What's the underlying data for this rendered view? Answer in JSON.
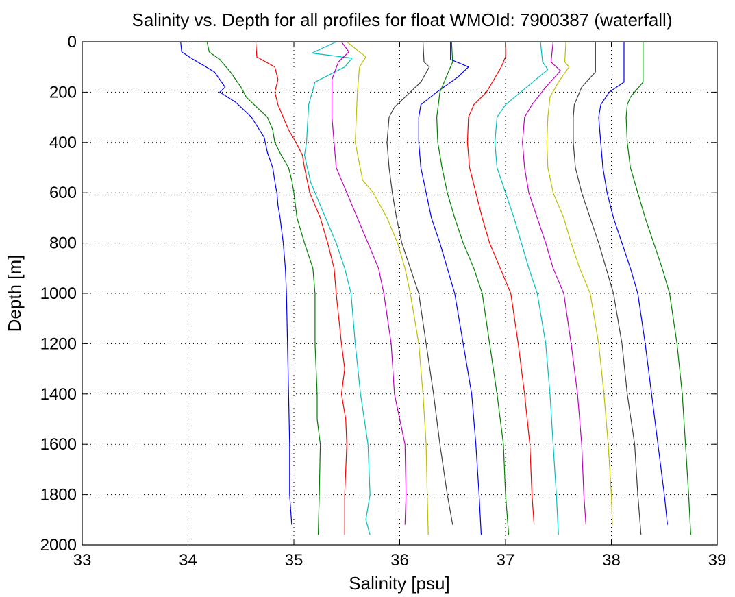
{
  "chart_data": {
    "type": "line",
    "title": "Salinity vs. Depth for all profiles for float WMOId: 7900387 (waterfall)",
    "xlabel": "Salinity [psu]",
    "ylabel": "Depth [m]",
    "xlim": [
      33,
      39
    ],
    "ylim": [
      0,
      2000
    ],
    "y_reversed": true,
    "grid": true,
    "xticks": [
      33,
      34,
      35,
      36,
      37,
      38,
      39
    ],
    "yticks": [
      0,
      200,
      400,
      600,
      800,
      1000,
      1200,
      1400,
      1600,
      1800,
      2000
    ],
    "series": [
      {
        "color": "#0000ff",
        "points": [
          [
            33.93,
            0
          ],
          [
            33.94,
            40
          ],
          [
            34.05,
            70
          ],
          [
            34.25,
            120
          ],
          [
            34.35,
            180
          ],
          [
            34.3,
            200
          ],
          [
            34.45,
            240
          ],
          [
            34.6,
            300
          ],
          [
            34.72,
            380
          ],
          [
            34.75,
            440
          ],
          [
            34.8,
            500
          ],
          [
            34.83,
            580
          ],
          [
            34.84,
            600
          ],
          [
            34.85,
            650
          ],
          [
            34.87,
            700
          ],
          [
            34.9,
            800
          ],
          [
            34.92,
            900
          ],
          [
            34.93,
            1000
          ],
          [
            34.94,
            1200
          ],
          [
            34.95,
            1400
          ],
          [
            34.96,
            1600
          ],
          [
            34.96,
            1800
          ],
          [
            34.98,
            1920
          ]
        ]
      },
      {
        "color": "#008000",
        "points": [
          [
            34.18,
            0
          ],
          [
            34.2,
            40
          ],
          [
            34.3,
            70
          ],
          [
            34.4,
            120
          ],
          [
            34.5,
            180
          ],
          [
            34.55,
            220
          ],
          [
            34.65,
            260
          ],
          [
            34.75,
            300
          ],
          [
            34.8,
            350
          ],
          [
            34.82,
            400
          ],
          [
            34.88,
            450
          ],
          [
            34.95,
            500
          ],
          [
            34.98,
            550
          ],
          [
            35.0,
            600
          ],
          [
            35.03,
            700
          ],
          [
            35.1,
            800
          ],
          [
            35.18,
            900
          ],
          [
            35.2,
            1000
          ],
          [
            35.2,
            1200
          ],
          [
            35.22,
            1400
          ],
          [
            35.22,
            1500
          ],
          [
            35.25,
            1600
          ],
          [
            35.24,
            1800
          ],
          [
            35.23,
            1960
          ]
        ]
      },
      {
        "color": "#ff0000",
        "points": [
          [
            34.64,
            0
          ],
          [
            34.65,
            60
          ],
          [
            34.82,
            100
          ],
          [
            34.85,
            150
          ],
          [
            34.82,
            200
          ],
          [
            34.85,
            250
          ],
          [
            34.9,
            300
          ],
          [
            34.95,
            350
          ],
          [
            35.02,
            400
          ],
          [
            35.08,
            450
          ],
          [
            35.1,
            500
          ],
          [
            35.15,
            600
          ],
          [
            35.25,
            700
          ],
          [
            35.32,
            800
          ],
          [
            35.38,
            900
          ],
          [
            35.4,
            1000
          ],
          [
            35.45,
            1200
          ],
          [
            35.48,
            1300
          ],
          [
            35.45,
            1400
          ],
          [
            35.49,
            1500
          ],
          [
            35.5,
            1600
          ],
          [
            35.48,
            1800
          ],
          [
            35.48,
            1960
          ]
        ]
      },
      {
        "color": "#00bfbf",
        "points": [
          [
            35.4,
            0
          ],
          [
            35.17,
            45
          ],
          [
            35.55,
            65
          ],
          [
            35.48,
            100
          ],
          [
            35.2,
            160
          ],
          [
            35.14,
            250
          ],
          [
            35.12,
            400
          ],
          [
            35.1,
            450
          ],
          [
            35.16,
            560
          ],
          [
            35.2,
            600
          ],
          [
            35.3,
            700
          ],
          [
            35.4,
            800
          ],
          [
            35.48,
            900
          ],
          [
            35.54,
            1000
          ],
          [
            35.58,
            1200
          ],
          [
            35.63,
            1400
          ],
          [
            35.7,
            1600
          ],
          [
            35.72,
            1800
          ],
          [
            35.68,
            1900
          ],
          [
            35.72,
            1960
          ]
        ]
      },
      {
        "color": "#bf00bf",
        "points": [
          [
            35.45,
            0
          ],
          [
            35.52,
            40
          ],
          [
            35.42,
            80
          ],
          [
            35.36,
            150
          ],
          [
            35.36,
            300
          ],
          [
            35.38,
            400
          ],
          [
            35.4,
            500
          ],
          [
            35.5,
            600
          ],
          [
            35.6,
            700
          ],
          [
            35.7,
            800
          ],
          [
            35.8,
            900
          ],
          [
            35.85,
            1000
          ],
          [
            35.92,
            1200
          ],
          [
            35.95,
            1400
          ],
          [
            36.0,
            1500
          ],
          [
            36.05,
            1600
          ],
          [
            36.06,
            1800
          ],
          [
            36.05,
            1920
          ]
        ]
      },
      {
        "color": "#bfbf00",
        "points": [
          [
            35.5,
            0
          ],
          [
            35.68,
            60
          ],
          [
            35.62,
            100
          ],
          [
            35.6,
            200
          ],
          [
            35.58,
            400
          ],
          [
            35.65,
            550
          ],
          [
            35.75,
            600
          ],
          [
            35.88,
            700
          ],
          [
            35.98,
            800
          ],
          [
            36.05,
            900
          ],
          [
            36.1,
            1000
          ],
          [
            36.18,
            1200
          ],
          [
            36.22,
            1400
          ],
          [
            36.25,
            1600
          ],
          [
            36.26,
            1800
          ],
          [
            36.27,
            1960
          ]
        ]
      },
      {
        "color": "#404040",
        "points": [
          [
            36.22,
            0
          ],
          [
            36.23,
            80
          ],
          [
            36.28,
            100
          ],
          [
            36.2,
            160
          ],
          [
            36.05,
            220
          ],
          [
            35.95,
            260
          ],
          [
            35.9,
            300
          ],
          [
            35.88,
            400
          ],
          [
            35.9,
            500
          ],
          [
            35.93,
            600
          ],
          [
            35.97,
            700
          ],
          [
            36.02,
            800
          ],
          [
            36.1,
            900
          ],
          [
            36.18,
            1000
          ],
          [
            36.25,
            1200
          ],
          [
            36.32,
            1400
          ],
          [
            36.38,
            1600
          ],
          [
            36.45,
            1800
          ],
          [
            36.5,
            1920
          ]
        ]
      },
      {
        "color": "#0000ff",
        "points": [
          [
            36.48,
            0
          ],
          [
            36.48,
            70
          ],
          [
            36.65,
            100
          ],
          [
            36.55,
            140
          ],
          [
            36.35,
            200
          ],
          [
            36.2,
            250
          ],
          [
            36.18,
            300
          ],
          [
            36.18,
            400
          ],
          [
            36.2,
            500
          ],
          [
            36.25,
            600
          ],
          [
            36.3,
            700
          ],
          [
            36.38,
            800
          ],
          [
            36.45,
            900
          ],
          [
            36.52,
            1000
          ],
          [
            36.6,
            1200
          ],
          [
            36.68,
            1400
          ],
          [
            36.72,
            1600
          ],
          [
            36.75,
            1800
          ],
          [
            36.77,
            1960
          ]
        ]
      },
      {
        "color": "#008000",
        "points": [
          [
            36.49,
            0
          ],
          [
            36.5,
            80
          ],
          [
            36.45,
            130
          ],
          [
            36.38,
            200
          ],
          [
            36.35,
            300
          ],
          [
            36.36,
            400
          ],
          [
            36.4,
            500
          ],
          [
            36.45,
            600
          ],
          [
            36.52,
            700
          ],
          [
            36.6,
            800
          ],
          [
            36.7,
            900
          ],
          [
            36.78,
            1000
          ],
          [
            36.85,
            1200
          ],
          [
            36.92,
            1400
          ],
          [
            36.98,
            1600
          ],
          [
            37.0,
            1800
          ],
          [
            37.03,
            1960
          ]
        ]
      },
      {
        "color": "#ff0000",
        "points": [
          [
            37.0,
            0
          ],
          [
            37.0,
            60
          ],
          [
            36.96,
            100
          ],
          [
            36.82,
            200
          ],
          [
            36.7,
            250
          ],
          [
            36.65,
            300
          ],
          [
            36.64,
            400
          ],
          [
            36.66,
            500
          ],
          [
            36.72,
            600
          ],
          [
            36.78,
            700
          ],
          [
            36.85,
            800
          ],
          [
            36.95,
            900
          ],
          [
            37.05,
            1000
          ],
          [
            37.12,
            1200
          ],
          [
            37.18,
            1400
          ],
          [
            37.23,
            1600
          ],
          [
            37.25,
            1800
          ],
          [
            37.27,
            1920
          ]
        ]
      },
      {
        "color": "#00bfbf",
        "points": [
          [
            37.33,
            0
          ],
          [
            37.35,
            80
          ],
          [
            37.4,
            110
          ],
          [
            37.2,
            180
          ],
          [
            37.0,
            250
          ],
          [
            36.92,
            300
          ],
          [
            36.9,
            400
          ],
          [
            36.92,
            500
          ],
          [
            37.0,
            600
          ],
          [
            37.08,
            700
          ],
          [
            37.15,
            800
          ],
          [
            37.22,
            900
          ],
          [
            37.3,
            1000
          ],
          [
            37.38,
            1200
          ],
          [
            37.42,
            1400
          ],
          [
            37.45,
            1600
          ],
          [
            37.48,
            1800
          ],
          [
            37.5,
            1960
          ]
        ]
      },
      {
        "color": "#bf00bf",
        "points": [
          [
            37.45,
            0
          ],
          [
            37.43,
            80
          ],
          [
            37.52,
            115
          ],
          [
            37.38,
            180
          ],
          [
            37.25,
            250
          ],
          [
            37.18,
            300
          ],
          [
            37.16,
            400
          ],
          [
            37.18,
            500
          ],
          [
            37.22,
            600
          ],
          [
            37.3,
            700
          ],
          [
            37.38,
            800
          ],
          [
            37.45,
            900
          ],
          [
            37.55,
            1000
          ],
          [
            37.62,
            1200
          ],
          [
            37.68,
            1400
          ],
          [
            37.72,
            1600
          ],
          [
            37.74,
            1800
          ],
          [
            37.76,
            1920
          ]
        ]
      },
      {
        "color": "#bfbf00",
        "points": [
          [
            37.57,
            0
          ],
          [
            37.56,
            80
          ],
          [
            37.6,
            100
          ],
          [
            37.5,
            160
          ],
          [
            37.42,
            220
          ],
          [
            37.4,
            300
          ],
          [
            37.39,
            400
          ],
          [
            37.4,
            500
          ],
          [
            37.45,
            600
          ],
          [
            37.55,
            700
          ],
          [
            37.62,
            800
          ],
          [
            37.7,
            900
          ],
          [
            37.8,
            1000
          ],
          [
            37.88,
            1200
          ],
          [
            37.93,
            1400
          ],
          [
            37.97,
            1600
          ],
          [
            38.0,
            1800
          ],
          [
            38.01,
            1920
          ]
        ]
      },
      {
        "color": "#404040",
        "points": [
          [
            37.85,
            0
          ],
          [
            37.85,
            120
          ],
          [
            37.72,
            180
          ],
          [
            37.65,
            250
          ],
          [
            37.64,
            300
          ],
          [
            37.64,
            400
          ],
          [
            37.66,
            500
          ],
          [
            37.72,
            600
          ],
          [
            37.8,
            700
          ],
          [
            37.88,
            800
          ],
          [
            37.95,
            900
          ],
          [
            38.02,
            1000
          ],
          [
            38.1,
            1200
          ],
          [
            38.15,
            1400
          ],
          [
            38.22,
            1600
          ],
          [
            38.25,
            1800
          ],
          [
            38.28,
            1960
          ]
        ]
      },
      {
        "color": "#0000ff",
        "points": [
          [
            38.12,
            0
          ],
          [
            38.12,
            160
          ],
          [
            37.98,
            200
          ],
          [
            37.9,
            250
          ],
          [
            37.88,
            300
          ],
          [
            37.9,
            400
          ],
          [
            37.92,
            500
          ],
          [
            37.96,
            600
          ],
          [
            38.02,
            700
          ],
          [
            38.1,
            800
          ],
          [
            38.18,
            900
          ],
          [
            38.25,
            1000
          ],
          [
            38.32,
            1200
          ],
          [
            38.38,
            1400
          ],
          [
            38.44,
            1600
          ],
          [
            38.5,
            1800
          ],
          [
            38.53,
            1920
          ]
        ]
      },
      {
        "color": "#008000",
        "points": [
          [
            38.3,
            0
          ],
          [
            38.3,
            160
          ],
          [
            38.18,
            220
          ],
          [
            38.15,
            250
          ],
          [
            38.14,
            300
          ],
          [
            38.15,
            400
          ],
          [
            38.18,
            500
          ],
          [
            38.25,
            600
          ],
          [
            38.32,
            700
          ],
          [
            38.4,
            800
          ],
          [
            38.48,
            900
          ],
          [
            38.55,
            1000
          ],
          [
            38.62,
            1200
          ],
          [
            38.67,
            1400
          ],
          [
            38.7,
            1600
          ],
          [
            38.73,
            1800
          ],
          [
            38.75,
            1960
          ]
        ]
      }
    ]
  }
}
